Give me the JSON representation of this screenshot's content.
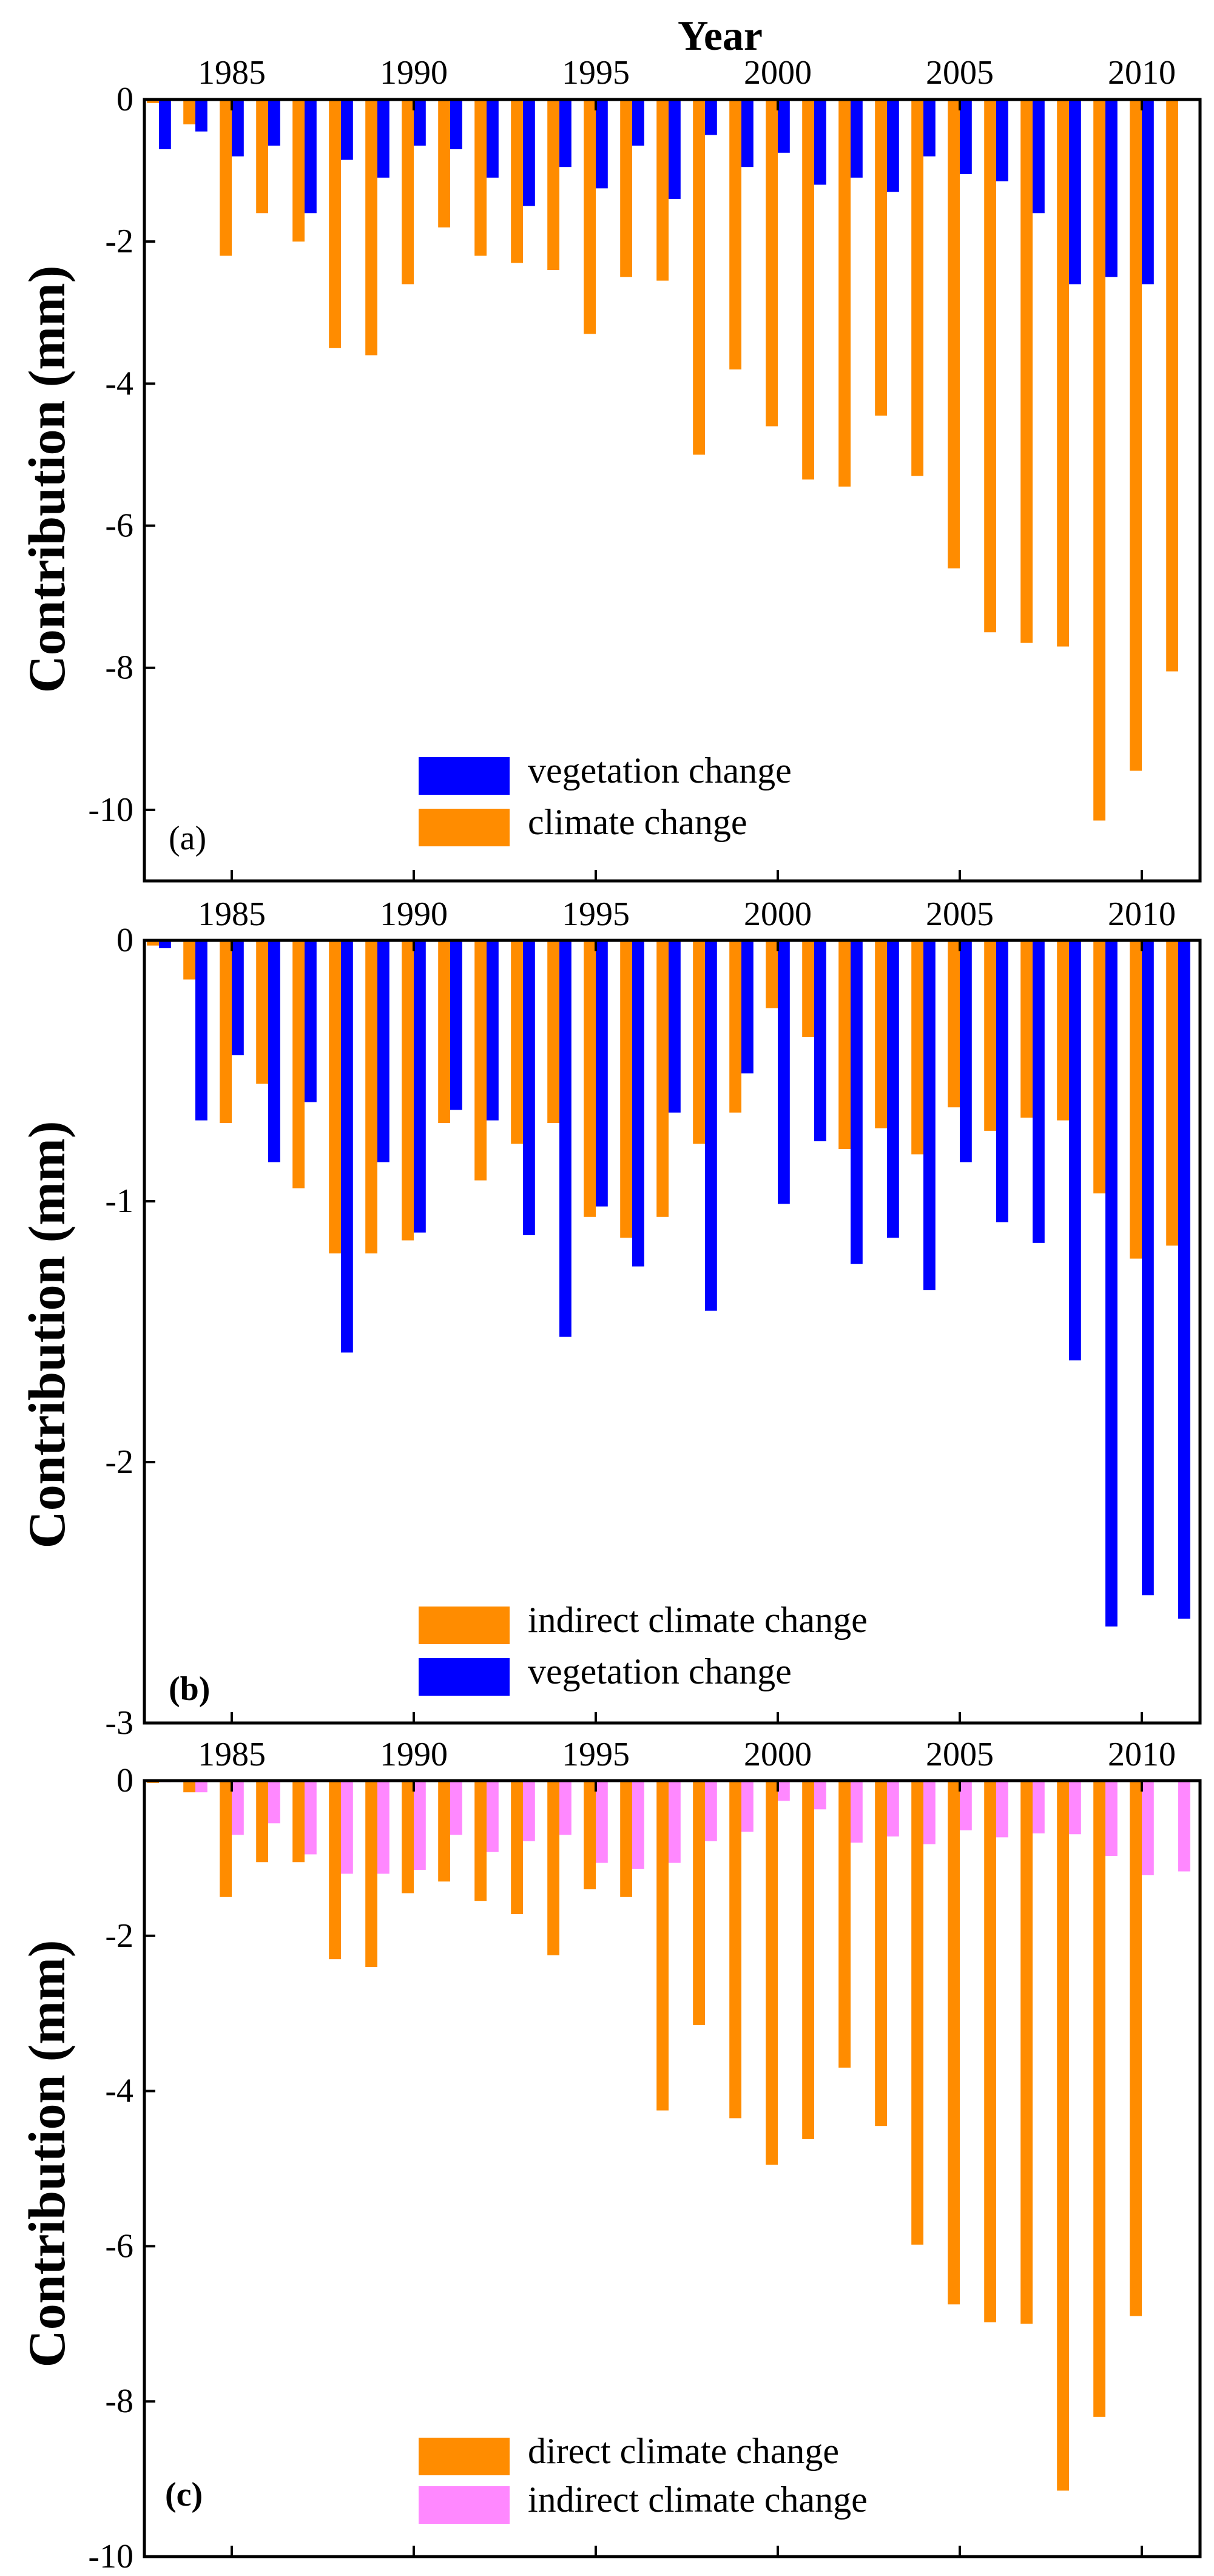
{
  "chart_data": [
    {
      "type": "bar",
      "panel_label": "(a)",
      "xlabel": "Year",
      "ylabel": "Contribution (mm)",
      "ylim": [
        -11,
        0
      ],
      "yticks": [
        0,
        -2,
        -4,
        -6,
        -8,
        -10
      ],
      "ytick_labels": [
        "0",
        "-2",
        "-4",
        "-6",
        "-8",
        "-10"
      ],
      "xticks": [
        1985,
        1990,
        1995,
        2000,
        2005,
        2010
      ],
      "xtick_labels": [
        "1985",
        "1990",
        "1995",
        "2000",
        "2005",
        "2010"
      ],
      "categories": [
        1983,
        1984,
        1985,
        1986,
        1987,
        1988,
        1989,
        1990,
        1991,
        1992,
        1993,
        1994,
        1995,
        1996,
        1997,
        1998,
        1999,
        2000,
        2001,
        2002,
        2003,
        2004,
        2005,
        2006,
        2007,
        2008,
        2009,
        2010,
        2011
      ],
      "legend_position": "bottom-center",
      "series": [
        {
          "name": "climate change",
          "color": "#ff8c00",
          "values": [
            -0.05,
            -0.35,
            -2.2,
            -1.6,
            -2.0,
            -3.5,
            -3.6,
            -2.6,
            -1.8,
            -2.2,
            -2.3,
            -2.4,
            -3.3,
            -2.5,
            -2.55,
            -5.0,
            -3.8,
            -4.6,
            -5.35,
            -5.45,
            -4.45,
            -5.3,
            -6.6,
            -7.5,
            -7.65,
            -7.7,
            -10.15,
            -9.45,
            -8.05
          ]
        },
        {
          "name": "vegetation change",
          "color": "#0000ff",
          "values": [
            -0.7,
            -0.45,
            -0.8,
            -0.65,
            -1.6,
            -0.85,
            -1.1,
            -0.65,
            -0.7,
            -1.1,
            -1.5,
            -0.95,
            -1.25,
            -0.65,
            -1.4,
            -0.5,
            -0.95,
            -0.75,
            -1.2,
            -1.1,
            -1.3,
            -0.8,
            -1.05,
            -1.15,
            -1.6,
            -2.6,
            -2.5,
            -2.6,
            null
          ]
        }
      ],
      "legend_order": [
        "vegetation change",
        "climate change"
      ]
    },
    {
      "type": "bar",
      "panel_label": "(b)",
      "xlabel": "",
      "ylabel": "Contribution (mm)",
      "ylim": [
        -3,
        0
      ],
      "yticks": [
        0,
        -1,
        -2,
        -3
      ],
      "ytick_labels": [
        "0",
        "-1",
        "-2",
        "-3"
      ],
      "xticks": [
        1985,
        1990,
        1995,
        2000,
        2005,
        2010
      ],
      "xtick_labels": [
        "1985",
        "1990",
        "1995",
        "2000",
        "2005",
        "2010"
      ],
      "categories": [
        1983,
        1984,
        1985,
        1986,
        1987,
        1988,
        1989,
        1990,
        1991,
        1992,
        1993,
        1994,
        1995,
        1996,
        1997,
        1998,
        1999,
        2000,
        2001,
        2002,
        2003,
        2004,
        2005,
        2006,
        2007,
        2008,
        2009,
        2010,
        2011
      ],
      "legend_position": "bottom-center",
      "series": [
        {
          "name": "indirect climate change",
          "color": "#ff8c00",
          "values": [
            -0.02,
            -0.15,
            -0.7,
            -0.55,
            -0.95,
            -1.2,
            -1.2,
            -1.15,
            -0.7,
            -0.92,
            -0.78,
            -0.7,
            -1.06,
            -1.14,
            -1.06,
            -0.78,
            -0.66,
            -0.26,
            -0.37,
            -0.8,
            -0.72,
            -0.82,
            -0.64,
            -0.73,
            -0.68,
            -0.69,
            -0.97,
            -1.22,
            -1.17
          ]
        },
        {
          "name": "vegetation change",
          "color": "#0000ff",
          "values": [
            -0.03,
            -0.69,
            -0.44,
            -0.85,
            -0.62,
            -1.58,
            -0.85,
            -1.12,
            -0.65,
            -0.69,
            -1.13,
            -1.52,
            -1.02,
            -1.25,
            -0.66,
            -1.42,
            -0.51,
            -1.01,
            -0.77,
            -1.24,
            -1.14,
            -1.34,
            -0.85,
            -1.08,
            -1.16,
            -1.61,
            -2.63,
            -2.51,
            -2.6
          ]
        }
      ],
      "legend_order": [
        "indirect climate change",
        "vegetation change"
      ]
    },
    {
      "type": "bar",
      "panel_label": "(c)",
      "xlabel": "",
      "ylabel": "Contribution (mm)",
      "ylim": [
        -10,
        0
      ],
      "yticks": [
        0,
        -2,
        -4,
        -6,
        -8,
        -10
      ],
      "ytick_labels": [
        "0",
        "-2",
        "-4",
        "-6",
        "-8",
        "-10"
      ],
      "xticks": [
        1985,
        1990,
        1995,
        2000,
        2005,
        2010
      ],
      "xtick_labels": [
        "1985",
        "1990",
        "1995",
        "2000",
        "2005",
        "2010"
      ],
      "categories": [
        1983,
        1984,
        1985,
        1986,
        1987,
        1988,
        1989,
        1990,
        1991,
        1992,
        1993,
        1994,
        1995,
        1996,
        1997,
        1998,
        1999,
        2000,
        2001,
        2002,
        2003,
        2004,
        2005,
        2006,
        2007,
        2008,
        2009,
        2010,
        2011
      ],
      "legend_position": "bottom-center",
      "series": [
        {
          "name": "direct climate change",
          "color": "#ff8c00",
          "values": [
            -0.03,
            -0.15,
            -1.5,
            -1.05,
            -1.05,
            -2.3,
            -2.4,
            -1.45,
            -1.3,
            -1.55,
            -1.72,
            -2.25,
            -1.4,
            -1.5,
            -4.25,
            -3.15,
            -4.35,
            -4.95,
            -4.62,
            -3.7,
            -4.45,
            -5.98,
            -6.75,
            -6.98,
            -7.0,
            -9.15,
            -8.2,
            -6.9,
            null
          ]
        },
        {
          "name": "indirect climate change",
          "color": "#ff88ff",
          "values": [
            -0.02,
            -0.15,
            -0.7,
            -0.55,
            -0.95,
            -1.2,
            -1.2,
            -1.15,
            -0.7,
            -0.92,
            -0.78,
            -0.7,
            -1.06,
            -1.14,
            -1.06,
            -0.78,
            -0.66,
            -0.26,
            -0.37,
            -0.8,
            -0.72,
            -0.82,
            -0.64,
            -0.73,
            -0.68,
            -0.69,
            -0.97,
            -1.22,
            -1.17
          ]
        }
      ],
      "legend_order": [
        "direct climate change",
        "indirect climate change"
      ]
    }
  ]
}
